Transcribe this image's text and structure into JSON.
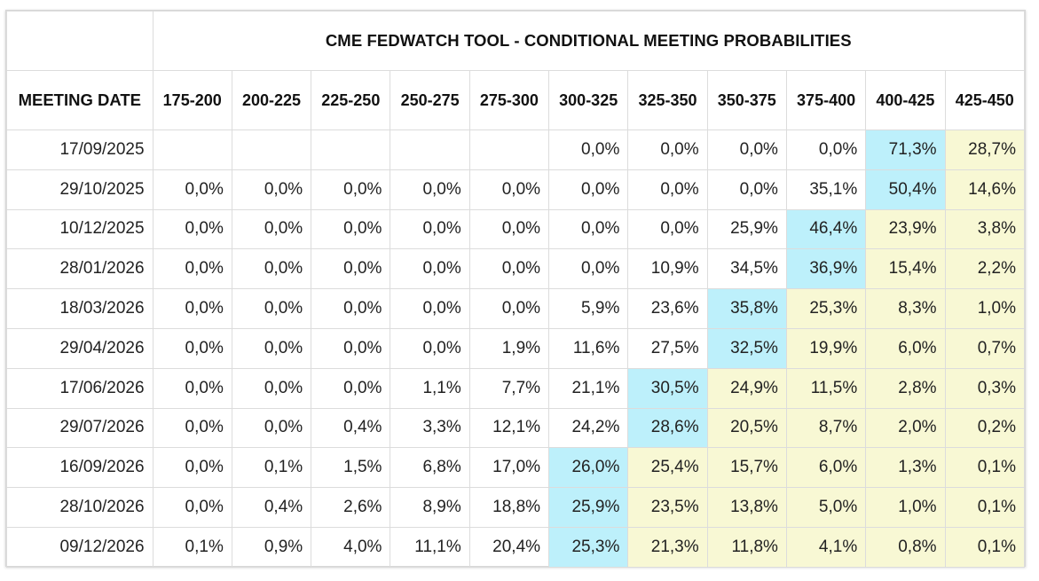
{
  "chart_data": {
    "type": "table",
    "title": "CME FEDWATCH TOOL - CONDITIONAL MEETING PROBABILITIES",
    "row_header_label": "MEETING DATE",
    "columns": [
      "175-200",
      "200-225",
      "225-250",
      "250-275",
      "275-300",
      "300-325",
      "325-350",
      "350-375",
      "375-400",
      "400-425",
      "425-450"
    ],
    "rows": [
      {
        "date": "17/09/2025",
        "values": [
          "",
          "",
          "",
          "",
          "",
          "0,0%",
          "0,0%",
          "0,0%",
          "0,0%",
          "71,3%",
          "28,7%"
        ],
        "highlight": 9
      },
      {
        "date": "29/10/2025",
        "values": [
          "0,0%",
          "0,0%",
          "0,0%",
          "0,0%",
          "0,0%",
          "0,0%",
          "0,0%",
          "0,0%",
          "35,1%",
          "50,4%",
          "14,6%"
        ],
        "highlight": 9
      },
      {
        "date": "10/12/2025",
        "values": [
          "0,0%",
          "0,0%",
          "0,0%",
          "0,0%",
          "0,0%",
          "0,0%",
          "0,0%",
          "25,9%",
          "46,4%",
          "23,9%",
          "3,8%"
        ],
        "highlight": 8
      },
      {
        "date": "28/01/2026",
        "values": [
          "0,0%",
          "0,0%",
          "0,0%",
          "0,0%",
          "0,0%",
          "0,0%",
          "10,9%",
          "34,5%",
          "36,9%",
          "15,4%",
          "2,2%"
        ],
        "highlight": 8
      },
      {
        "date": "18/03/2026",
        "values": [
          "0,0%",
          "0,0%",
          "0,0%",
          "0,0%",
          "0,0%",
          "5,9%",
          "23,6%",
          "35,8%",
          "25,3%",
          "8,3%",
          "1,0%"
        ],
        "highlight": 7
      },
      {
        "date": "29/04/2026",
        "values": [
          "0,0%",
          "0,0%",
          "0,0%",
          "0,0%",
          "1,9%",
          "11,6%",
          "27,5%",
          "32,5%",
          "19,9%",
          "6,0%",
          "0,7%"
        ],
        "highlight": 7
      },
      {
        "date": "17/06/2026",
        "values": [
          "0,0%",
          "0,0%",
          "0,0%",
          "1,1%",
          "7,7%",
          "21,1%",
          "30,5%",
          "24,9%",
          "11,5%",
          "2,8%",
          "0,3%"
        ],
        "highlight": 6
      },
      {
        "date": "29/07/2026",
        "values": [
          "0,0%",
          "0,0%",
          "0,4%",
          "3,3%",
          "12,1%",
          "24,2%",
          "28,6%",
          "20,5%",
          "8,7%",
          "2,0%",
          "0,2%"
        ],
        "highlight": 6
      },
      {
        "date": "16/09/2026",
        "values": [
          "0,0%",
          "0,1%",
          "1,5%",
          "6,8%",
          "17,0%",
          "26,0%",
          "25,4%",
          "15,7%",
          "6,0%",
          "1,3%",
          "0,1%"
        ],
        "highlight": 5
      },
      {
        "date": "28/10/2026",
        "values": [
          "0,0%",
          "0,4%",
          "2,6%",
          "8,9%",
          "18,8%",
          "25,9%",
          "23,5%",
          "13,8%",
          "5,0%",
          "1,0%",
          "0,1%"
        ],
        "highlight": 5
      },
      {
        "date": "09/12/2026",
        "values": [
          "0,1%",
          "0,9%",
          "4,0%",
          "11,1%",
          "20,4%",
          "25,3%",
          "21,3%",
          "11,8%",
          "4,1%",
          "0,8%",
          "0,1%"
        ],
        "highlight": 5
      }
    ],
    "colors": {
      "highlight": "#bdf0fb",
      "above": "#f8f8d4",
      "border": "#dcdcdc"
    }
  }
}
